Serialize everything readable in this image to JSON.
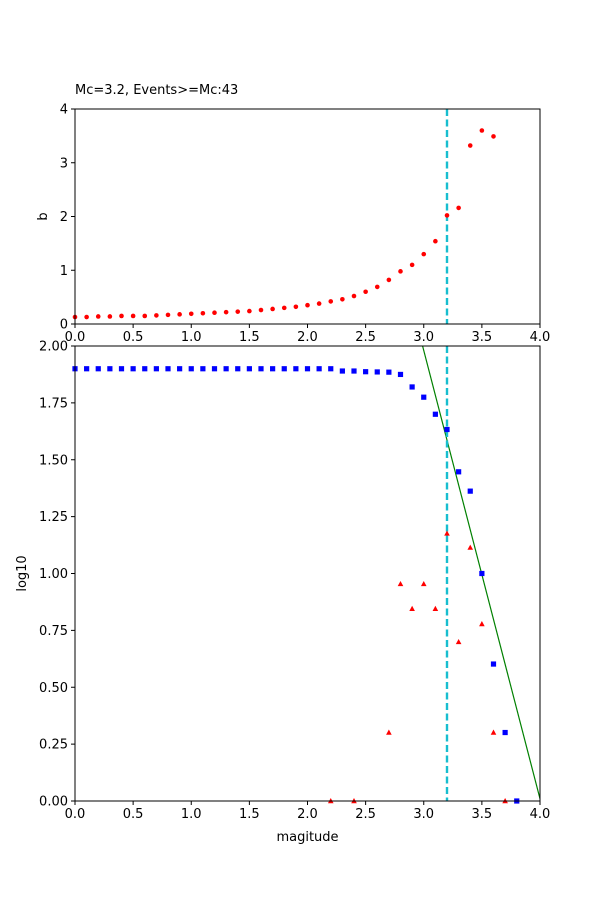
{
  "chart_data": [
    {
      "type": "scatter",
      "title": "Mc=3.2, Events>=Mc:43",
      "xlabel": "",
      "ylabel": "b",
      "xlim": [
        0,
        4.0
      ],
      "ylim": [
        0,
        4
      ],
      "x_ticks": [
        "0.0",
        "0.5",
        "1.0",
        "1.5",
        "2.0",
        "2.5",
        "3.0",
        "3.5",
        "4.0"
      ],
      "y_ticks": [
        "0",
        "1",
        "2",
        "3",
        "4"
      ],
      "mc_line": 3.2,
      "mc_line_color": "#17becf",
      "series": [
        {
          "color": "#ff0000",
          "marker": "circle",
          "x": [
            0.0,
            0.1,
            0.2,
            0.3,
            0.4,
            0.5,
            0.6,
            0.7,
            0.8,
            0.9,
            1.0,
            1.1,
            1.2,
            1.3,
            1.4,
            1.5,
            1.6,
            1.7,
            1.8,
            1.9,
            2.0,
            2.1,
            2.2,
            2.3,
            2.4,
            2.5,
            2.6,
            2.7,
            2.8,
            2.9,
            3.0,
            3.1,
            3.2,
            3.3,
            3.4,
            3.5,
            3.6
          ],
          "y": [
            0.13,
            0.13,
            0.14,
            0.14,
            0.15,
            0.15,
            0.15,
            0.16,
            0.17,
            0.18,
            0.19,
            0.2,
            0.21,
            0.22,
            0.23,
            0.24,
            0.26,
            0.28,
            0.3,
            0.32,
            0.35,
            0.38,
            0.42,
            0.46,
            0.52,
            0.6,
            0.69,
            0.82,
            0.98,
            1.1,
            1.3,
            1.54,
            2.02,
            2.16,
            3.32,
            3.6,
            3.49
          ]
        }
      ]
    },
    {
      "type": "scatter",
      "title": "",
      "xlabel": "magitude",
      "ylabel": "log10",
      "xlim": [
        0,
        4.0
      ],
      "ylim": [
        0,
        2.0
      ],
      "x_ticks": [
        "0.0",
        "0.5",
        "1.0",
        "1.5",
        "2.0",
        "2.5",
        "3.0",
        "3.5",
        "4.0"
      ],
      "y_ticks": [
        "0.00",
        "0.25",
        "0.50",
        "0.75",
        "1.00",
        "1.25",
        "1.50",
        "1.75",
        "2.00"
      ],
      "mc_line": 3.2,
      "mc_line_color": "#17becf",
      "fit_line": {
        "color": "#008000",
        "x": [
          2.99,
          4.0
        ],
        "y": [
          2.0,
          0.01
        ]
      },
      "series": [
        {
          "color": "#0000ff",
          "marker": "square",
          "x": [
            0.0,
            0.1,
            0.2,
            0.3,
            0.4,
            0.5,
            0.6,
            0.7,
            0.8,
            0.9,
            1.0,
            1.1,
            1.2,
            1.3,
            1.4,
            1.5,
            1.6,
            1.7,
            1.8,
            1.9,
            2.0,
            2.1,
            2.2,
            2.3,
            2.4,
            2.5,
            2.6,
            2.7,
            2.8,
            2.9,
            3.0,
            3.1,
            3.2,
            3.3,
            3.4,
            3.5,
            3.6,
            3.7,
            3.8
          ],
          "y": [
            1.9,
            1.9,
            1.9,
            1.9,
            1.9,
            1.9,
            1.9,
            1.9,
            1.9,
            1.9,
            1.9,
            1.9,
            1.9,
            1.9,
            1.9,
            1.9,
            1.9,
            1.9,
            1.9,
            1.9,
            1.9,
            1.9,
            1.9,
            1.89,
            1.89,
            1.887,
            1.886,
            1.885,
            1.875,
            1.82,
            1.775,
            1.7,
            1.633,
            1.447,
            1.362,
            1.0,
            0.602,
            0.301,
            0.0
          ]
        },
        {
          "color": "#ff0000",
          "marker": "triangle",
          "x": [
            2.2,
            2.4,
            2.7,
            2.8,
            2.9,
            3.0,
            3.1,
            3.2,
            3.3,
            3.4,
            3.5,
            3.6,
            3.7
          ],
          "y": [
            0.0,
            0.0,
            0.301,
            0.954,
            0.845,
            0.954,
            0.845,
            1.176,
            0.699,
            1.114,
            0.778,
            0.301,
            0.0
          ]
        }
      ]
    }
  ]
}
